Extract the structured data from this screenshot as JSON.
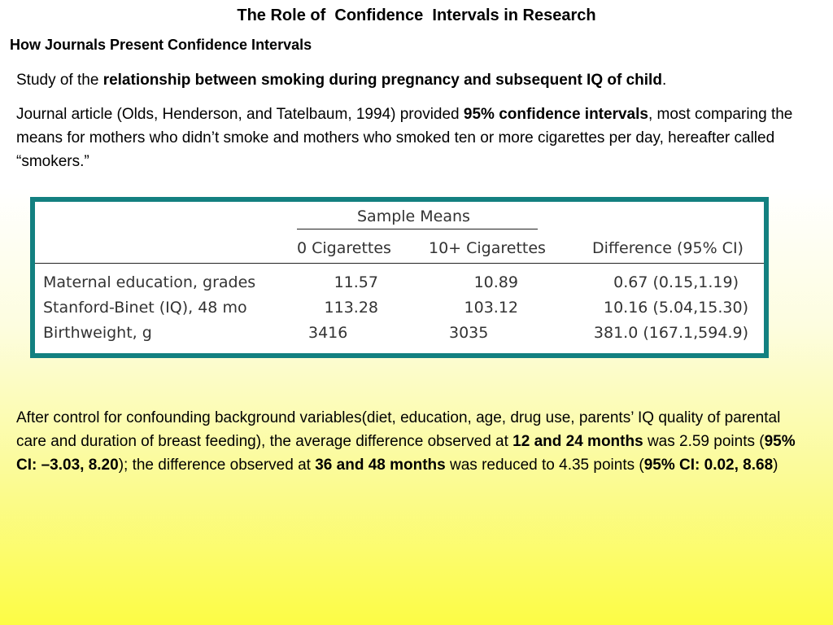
{
  "title": "The Role of  Confidence  Intervals in Research",
  "subtitle": "How Journals Present Confidence Intervals",
  "p1": {
    "a": "Study of the ",
    "b": "relationship between smoking during pregnancy and subsequent IQ of child",
    "c": "."
  },
  "p2": {
    "a": "Journal article (Olds, Henderson, and Tatelbaum, 1994) provided ",
    "b": "95% confidence intervals",
    "c": ", most comparing the means for mothers who didn’t smoke and mothers who smoked ten or more cigarettes per day, hereafter called “smokers.”"
  },
  "table": {
    "group_header": "Sample Means",
    "columns": [
      "0 Cigarettes",
      "10+ Cigarettes",
      "Difference (95% CI)"
    ],
    "rows": [
      {
        "label": "Maternal education, grades",
        "c0": "11.57",
        "c1": "10.89",
        "diff": "0.67 (0.15,1.19)"
      },
      {
        "label": "Stanford-Binet (IQ), 48 mo",
        "c0": "113.28",
        "c1": "103.12",
        "diff": "10.16 (5.04,15.30)"
      },
      {
        "label": "Birthweight, g",
        "c0": "3416",
        "c1": "3035",
        "diff": "381.0 (167.1,594.9)"
      }
    ]
  },
  "p3": {
    "a": "After control for confounding background variables(diet, education, age, drug use, parents’ IQ quality of parental care and duration of breast feeding), the average difference observed at ",
    "b": "12 and 24 months",
    "c": " was 2.59 points (",
    "d": "95% CI: –3.03, 8.20",
    "e": "); the difference observed at ",
    "f": "36 and 48 months",
    "g": " was reduced to 4.35 points (",
    "h": "95% CI: 0.02, 8.68",
    "i": ")"
  }
}
